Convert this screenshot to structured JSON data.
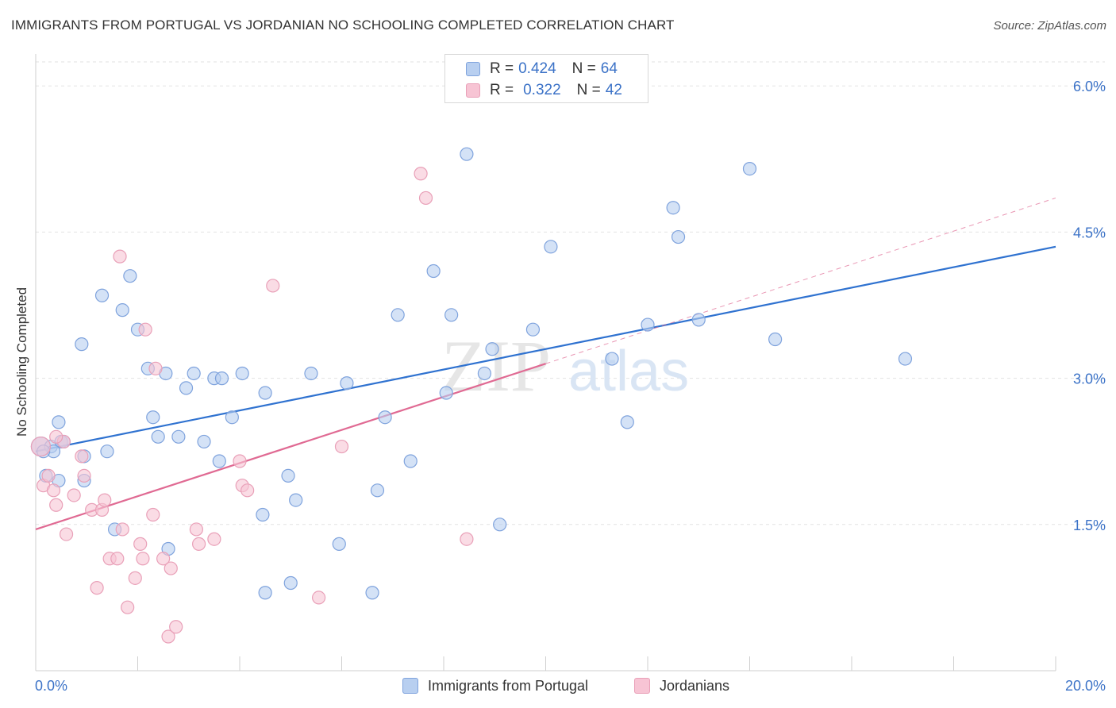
{
  "header": {
    "title": "IMMIGRANTS FROM PORTUGAL VS JORDANIAN NO SCHOOLING COMPLETED CORRELATION CHART",
    "source": "Source: ZipAtlas.com"
  },
  "watermark": {
    "text_a": "ZIP",
    "text_b": "atlas"
  },
  "legend": {
    "r_label": "R =",
    "n_label": "N =",
    "items": [
      {
        "r": "0.424",
        "n": "64"
      },
      {
        "r": "0.322",
        "n": "42"
      }
    ]
  },
  "colors": {
    "blue_fill": "#b8cff0",
    "blue_stroke": "#7fa3dd",
    "blue_line": "#2f72d0",
    "pink_fill": "#f7c4d4",
    "pink_stroke": "#e9a0b8",
    "pink_line": "#e06a93",
    "grid": "#e2e2e2",
    "axis_text": "#3b72c7"
  },
  "chart_data": {
    "type": "scatter",
    "title": "IMMIGRANTS FROM PORTUGAL VS JORDANIAN NO SCHOOLING COMPLETED CORRELATION CHART",
    "xlabel": "",
    "ylabel": "No Schooling Completed",
    "xlim": [
      0,
      20
    ],
    "ylim": [
      0,
      6.2
    ],
    "x_tick_labels": [
      "0.0%",
      "20.0%"
    ],
    "y_ticks": [
      1.5,
      3.0,
      4.5,
      6.0
    ],
    "y_tick_labels": [
      "1.5%",
      "3.0%",
      "4.5%",
      "6.0%"
    ],
    "grid": true,
    "legend_position": "top-center",
    "series": [
      {
        "name": "Immigrants from Portugal",
        "trend": {
          "x": [
            0.0,
            20.0
          ],
          "y": [
            2.25,
            4.35
          ],
          "style": "solid"
        },
        "points": [
          [
            0.1,
            2.3
          ],
          [
            0.2,
            2.0
          ],
          [
            0.3,
            2.3
          ],
          [
            0.45,
            2.55
          ],
          [
            0.5,
            2.35
          ],
          [
            0.35,
            2.25
          ],
          [
            0.45,
            1.95
          ],
          [
            0.55,
            2.35
          ],
          [
            0.95,
            1.95
          ],
          [
            0.9,
            3.35
          ],
          [
            0.95,
            2.2
          ],
          [
            1.3,
            3.85
          ],
          [
            1.4,
            2.25
          ],
          [
            1.7,
            3.7
          ],
          [
            1.85,
            4.05
          ],
          [
            2.0,
            3.5
          ],
          [
            2.2,
            3.1
          ],
          [
            2.3,
            2.6
          ],
          [
            2.4,
            2.4
          ],
          [
            2.55,
            3.05
          ],
          [
            2.6,
            1.25
          ],
          [
            2.8,
            2.4
          ],
          [
            2.95,
            2.9
          ],
          [
            3.1,
            3.05
          ],
          [
            3.3,
            2.35
          ],
          [
            3.5,
            3.0
          ],
          [
            3.6,
            2.15
          ],
          [
            3.65,
            3.0
          ],
          [
            3.85,
            2.6
          ],
          [
            4.05,
            3.05
          ],
          [
            4.45,
            1.6
          ],
          [
            4.5,
            0.8
          ],
          [
            4.5,
            2.85
          ],
          [
            4.95,
            2.0
          ],
          [
            5.0,
            0.9
          ],
          [
            5.1,
            1.75
          ],
          [
            5.4,
            3.05
          ],
          [
            5.95,
            1.3
          ],
          [
            6.1,
            2.95
          ],
          [
            6.6,
            0.8
          ],
          [
            6.7,
            1.85
          ],
          [
            6.85,
            2.6
          ],
          [
            7.1,
            3.65
          ],
          [
            7.35,
            2.15
          ],
          [
            7.8,
            4.1
          ],
          [
            8.05,
            2.85
          ],
          [
            8.15,
            3.65
          ],
          [
            8.45,
            5.3
          ],
          [
            8.8,
            3.05
          ],
          [
            8.95,
            3.3
          ],
          [
            9.1,
            1.5
          ],
          [
            9.75,
            3.5
          ],
          [
            10.1,
            4.35
          ],
          [
            11.3,
            3.2
          ],
          [
            11.6,
            2.55
          ],
          [
            12.0,
            3.55
          ],
          [
            12.5,
            4.75
          ],
          [
            12.6,
            4.45
          ],
          [
            13.0,
            3.6
          ],
          [
            14.0,
            5.15
          ],
          [
            14.5,
            3.4
          ],
          [
            17.05,
            3.2
          ],
          [
            0.15,
            2.25
          ],
          [
            1.55,
            1.45
          ]
        ]
      },
      {
        "name": "Jordanians",
        "trend": {
          "x": [
            0.0,
            10.0
          ],
          "y": [
            1.45,
            3.15
          ],
          "style": "solid",
          "extension": {
            "x": [
              10.0,
              20.0
            ],
            "y": [
              3.15,
              4.85
            ],
            "style": "dashed"
          }
        },
        "points": [
          [
            0.1,
            2.3
          ],
          [
            0.15,
            1.9
          ],
          [
            0.25,
            2.0
          ],
          [
            0.35,
            1.85
          ],
          [
            0.4,
            1.7
          ],
          [
            0.55,
            2.35
          ],
          [
            0.6,
            1.4
          ],
          [
            0.75,
            1.8
          ],
          [
            0.9,
            2.2
          ],
          [
            0.95,
            2.0
          ],
          [
            1.1,
            1.65
          ],
          [
            1.2,
            0.85
          ],
          [
            1.3,
            1.65
          ],
          [
            1.35,
            1.75
          ],
          [
            1.45,
            1.15
          ],
          [
            1.6,
            1.15
          ],
          [
            1.65,
            4.25
          ],
          [
            1.7,
            1.45
          ],
          [
            1.8,
            0.65
          ],
          [
            1.95,
            0.95
          ],
          [
            2.05,
            1.3
          ],
          [
            2.1,
            1.15
          ],
          [
            2.15,
            3.5
          ],
          [
            2.3,
            1.6
          ],
          [
            2.35,
            3.1
          ],
          [
            2.5,
            1.15
          ],
          [
            2.6,
            0.35
          ],
          [
            2.65,
            1.05
          ],
          [
            2.75,
            0.45
          ],
          [
            3.15,
            1.45
          ],
          [
            3.2,
            1.3
          ],
          [
            3.5,
            1.35
          ],
          [
            4.0,
            2.15
          ],
          [
            4.05,
            1.9
          ],
          [
            4.15,
            1.85
          ],
          [
            4.65,
            3.95
          ],
          [
            5.55,
            0.75
          ],
          [
            6.0,
            2.3
          ],
          [
            7.55,
            5.1
          ],
          [
            7.65,
            4.85
          ],
          [
            8.45,
            1.35
          ],
          [
            0.4,
            2.4
          ]
        ]
      }
    ]
  }
}
